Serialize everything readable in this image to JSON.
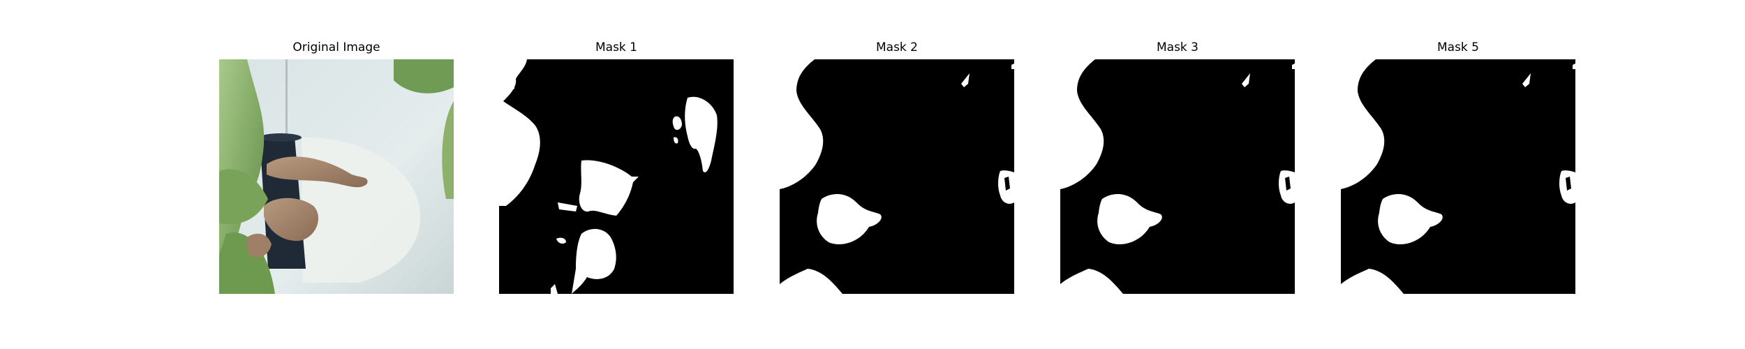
{
  "figure": {
    "panels": [
      {
        "title": "Original Image"
      },
      {
        "title": "Mask 1"
      },
      {
        "title": "Mask 2"
      },
      {
        "title": "Mask 3"
      },
      {
        "title": "Mask 5"
      }
    ],
    "colors": {
      "background": "#ffffff",
      "mask_background": "#000000",
      "mask_foreground": "#ffffff"
    }
  }
}
